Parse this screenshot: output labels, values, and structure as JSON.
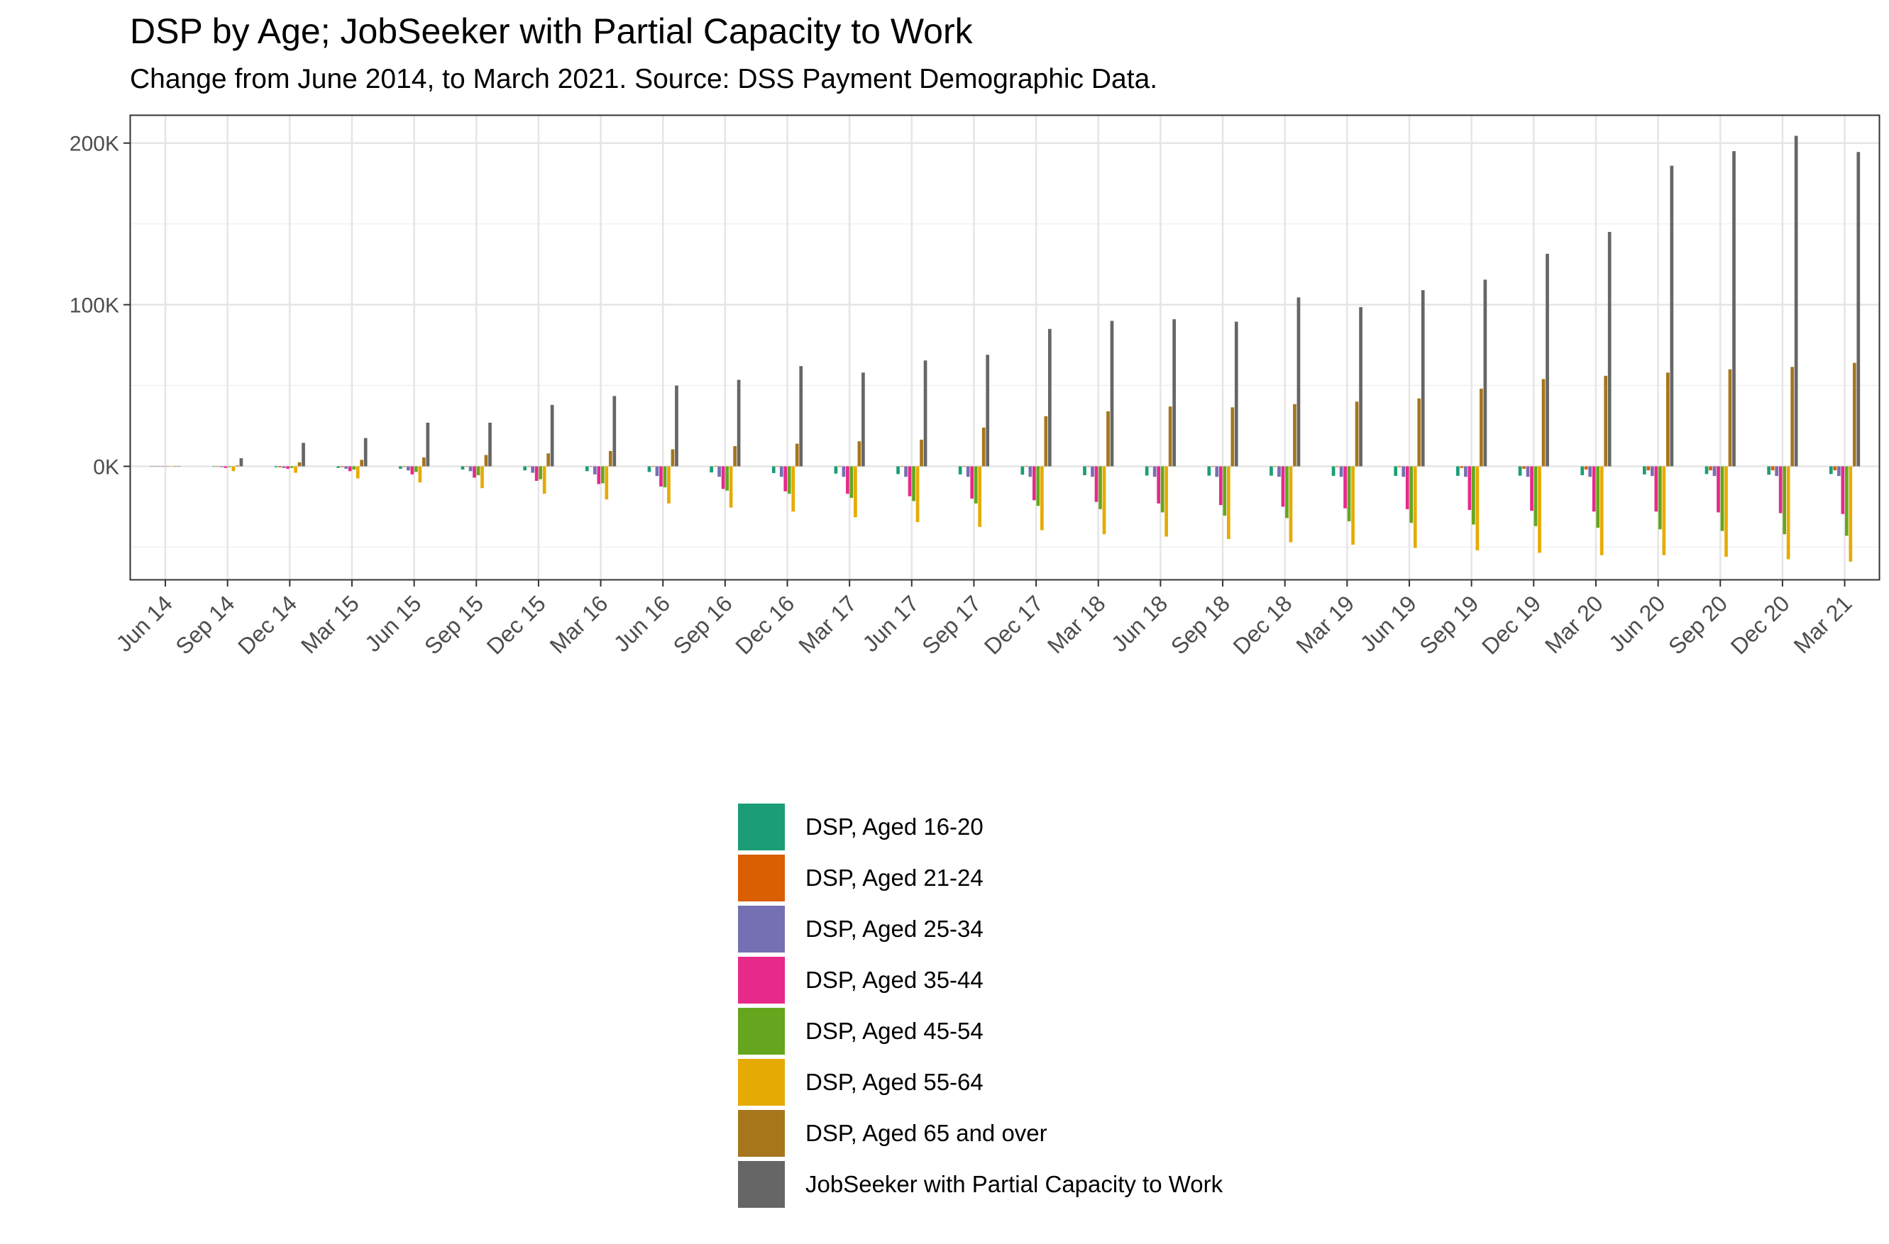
{
  "title": "DSP by Age; JobSeeker with Partial Capacity to Work",
  "subtitle": "Change from June 2014, to March 2021. Source: DSS Payment Demographic Data.",
  "colors": {
    "panel_border": "#333333",
    "grid_major": "#e5e5e5",
    "grid_minor": "#f0f0f0",
    "axis_text": "#4d4d4d"
  },
  "chart_data": {
    "type": "bar",
    "xlabel": "",
    "ylabel": "",
    "ylim": [
      -70000,
      217000
    ],
    "yticks": [
      0,
      100000,
      200000
    ],
    "ytick_labels": [
      "0K",
      "100K",
      "200K"
    ],
    "grid": true,
    "legend_position": "bottom",
    "categories": [
      "Jun 14",
      "Sep 14",
      "Dec 14",
      "Mar 15",
      "Jun 15",
      "Sep 15",
      "Dec 15",
      "Mar 16",
      "Jun 16",
      "Sep 16",
      "Dec 16",
      "Mar 17",
      "Jun 17",
      "Sep 17",
      "Dec 17",
      "Mar 18",
      "Jun 18",
      "Sep 18",
      "Dec 18",
      "Mar 19",
      "Jun 19",
      "Sep 19",
      "Dec 19",
      "Mar 20",
      "Jun 20",
      "Sep 20",
      "Dec 20",
      "Mar 21"
    ],
    "series": [
      {
        "name": "DSP, Aged 16-20",
        "color": "#1b9e77",
        "values": [
          0,
          -300,
          -600,
          -1000,
          -1500,
          -2000,
          -2500,
          -3000,
          -3500,
          -3800,
          -4200,
          -4500,
          -4800,
          -5000,
          -5200,
          -5500,
          -5700,
          -5800,
          -5800,
          -5900,
          -5900,
          -5900,
          -5800,
          -5500,
          -5000,
          -4800,
          -5200,
          -4800
        ]
      },
      {
        "name": "DSP, Aged 21-24",
        "color": "#d95f02",
        "values": [
          0,
          -300,
          -600,
          -500,
          -400,
          -300,
          -300,
          -300,
          -300,
          -300,
          -300,
          -300,
          -300,
          -300,
          -300,
          -300,
          -300,
          -300,
          -300,
          -400,
          -500,
          -1000,
          -1500,
          -2000,
          -2500,
          -2500,
          -2500,
          -2500
        ]
      },
      {
        "name": "DSP, Aged 25-34",
        "color": "#7570b3",
        "values": [
          0,
          -500,
          -1000,
          -1500,
          -2500,
          -3000,
          -4000,
          -5000,
          -6000,
          -6500,
          -6500,
          -6500,
          -6500,
          -6500,
          -6500,
          -6500,
          -6500,
          -6500,
          -6500,
          -6500,
          -6500,
          -6500,
          -6500,
          -6500,
          -6000,
          -6000,
          -6000,
          -6000
        ]
      },
      {
        "name": "DSP, Aged 35-44",
        "color": "#e7298a",
        "values": [
          0,
          -1000,
          -1500,
          -3000,
          -5000,
          -7000,
          -9000,
          -11000,
          -12500,
          -14000,
          -15500,
          -17000,
          -18500,
          -20000,
          -21000,
          -22000,
          -23000,
          -24000,
          -25000,
          -26000,
          -26500,
          -27000,
          -27500,
          -28000,
          -28000,
          -28500,
          -29000,
          -29500
        ]
      },
      {
        "name": "DSP, Aged 45-54",
        "color": "#66a61e",
        "values": [
          0,
          -500,
          -1000,
          -2000,
          -3500,
          -5500,
          -8000,
          -10500,
          -13000,
          -15000,
          -17000,
          -19500,
          -21500,
          -23000,
          -24500,
          -26500,
          -28500,
          -30500,
          -32000,
          -34000,
          -35000,
          -36000,
          -37000,
          -38000,
          -39000,
          -40000,
          -42000,
          -43000
        ]
      },
      {
        "name": "DSP, Aged 55-64",
        "color": "#e6ab02",
        "values": [
          0,
          -3000,
          -4000,
          -7500,
          -10000,
          -13500,
          -17000,
          -20500,
          -23000,
          -25500,
          -28000,
          -31500,
          -34500,
          -37500,
          -39500,
          -42000,
          -43500,
          -45000,
          -47000,
          -48500,
          -50500,
          -52000,
          -53500,
          -55000,
          -55000,
          -56000,
          -57500,
          -59000
        ]
      },
      {
        "name": "DSP, Aged 65 and over",
        "color": "#a6761d",
        "values": [
          0,
          500,
          2500,
          4000,
          5500,
          7000,
          8000,
          9500,
          10500,
          12500,
          14000,
          15500,
          16500,
          24000,
          31000,
          34000,
          37000,
          36500,
          38500,
          40000,
          42000,
          48000,
          54000,
          56000,
          58000,
          60000,
          61500,
          64000
        ]
      },
      {
        "name": "JobSeeker with Partial Capacity to Work",
        "color": "#666666",
        "values": [
          0,
          5000,
          14500,
          17500,
          27000,
          27000,
          38000,
          43500,
          50000,
          53500,
          62000,
          58000,
          65500,
          69000,
          85000,
          90000,
          91000,
          89500,
          104500,
          98500,
          109000,
          115500,
          131500,
          145000,
          186000,
          195000,
          204500,
          194500
        ]
      }
    ]
  }
}
